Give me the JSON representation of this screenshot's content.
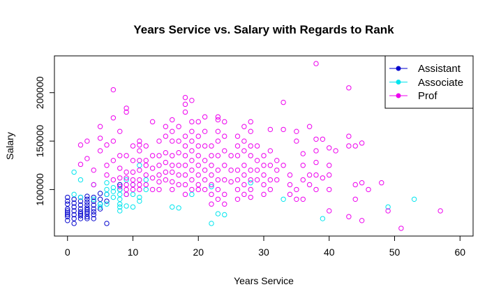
{
  "chart_data": {
    "type": "scatter",
    "title": "Years Service vs. Salary with Regards to Rank",
    "xlabel": "Years Service",
    "ylabel": "Salary",
    "xlim": [
      -2,
      62
    ],
    "ylim": [
      52000,
      238000
    ],
    "x_ticks": [
      0,
      10,
      20,
      30,
      40,
      50,
      60
    ],
    "x_tick_labels": [
      "0",
      "10",
      "20",
      "30",
      "40",
      "50",
      "60"
    ],
    "y_ticks": [
      100000,
      150000,
      200000
    ],
    "y_tick_labels": [
      "100000",
      "150000",
      "200000"
    ],
    "grid": false,
    "legend_position": "top-right",
    "series": [
      {
        "name": "Assistant",
        "color": "#0000CD",
        "points": [
          [
            0,
            92000
          ],
          [
            0,
            88000
          ],
          [
            0,
            85000
          ],
          [
            0,
            80000
          ],
          [
            0,
            78000
          ],
          [
            0,
            76000
          ],
          [
            0,
            74000
          ],
          [
            0,
            72000
          ],
          [
            0,
            68000
          ],
          [
            1,
            90000
          ],
          [
            1,
            86000
          ],
          [
            1,
            82000
          ],
          [
            1,
            78000
          ],
          [
            1,
            74000
          ],
          [
            1,
            70000
          ],
          [
            1,
            65000
          ],
          [
            2,
            92000
          ],
          [
            2,
            88000
          ],
          [
            2,
            84000
          ],
          [
            2,
            80000
          ],
          [
            2,
            77000
          ],
          [
            2,
            75000
          ],
          [
            2,
            73000
          ],
          [
            2,
            70000
          ],
          [
            3,
            93000
          ],
          [
            3,
            90000
          ],
          [
            3,
            87000
          ],
          [
            3,
            84000
          ],
          [
            3,
            81000
          ],
          [
            3,
            79000
          ],
          [
            3,
            77000
          ],
          [
            3,
            75000
          ],
          [
            3,
            72000
          ],
          [
            3,
            70000
          ],
          [
            4,
            92000
          ],
          [
            4,
            88000
          ],
          [
            4,
            84000
          ],
          [
            4,
            80000
          ],
          [
            4,
            77000
          ],
          [
            4,
            74000
          ],
          [
            4,
            70000
          ],
          [
            5,
            96000
          ],
          [
            5,
            90000
          ],
          [
            5,
            85000
          ],
          [
            5,
            80000
          ],
          [
            6,
            95000
          ],
          [
            6,
            88000
          ],
          [
            6,
            65000
          ],
          [
            8,
            105000
          ],
          [
            8,
            100000
          ]
        ]
      },
      {
        "name": "Associate",
        "color": "#00E5EE",
        "points": [
          [
            1,
            118000
          ],
          [
            1,
            95000
          ],
          [
            2,
            110000
          ],
          [
            2,
            92000
          ],
          [
            4,
            105000
          ],
          [
            4,
            90000
          ],
          [
            5,
            85000
          ],
          [
            5,
            82000
          ],
          [
            6,
            107000
          ],
          [
            6,
            100000
          ],
          [
            6,
            95000
          ],
          [
            6,
            85000
          ],
          [
            7,
            102000
          ],
          [
            7,
            98000
          ],
          [
            7,
            92000
          ],
          [
            8,
            100000
          ],
          [
            8,
            95000
          ],
          [
            8,
            90000
          ],
          [
            8,
            85000
          ],
          [
            8,
            82000
          ],
          [
            8,
            78000
          ],
          [
            9,
            110000
          ],
          [
            9,
            95000
          ],
          [
            9,
            83000
          ],
          [
            10,
            105000
          ],
          [
            10,
            95000
          ],
          [
            10,
            82000
          ],
          [
            11,
            125000
          ],
          [
            11,
            92000
          ],
          [
            11,
            88000
          ],
          [
            12,
            110000
          ],
          [
            12,
            100000
          ],
          [
            16,
            82000
          ],
          [
            17,
            81000
          ],
          [
            19,
            95000
          ],
          [
            22,
            65000
          ],
          [
            22,
            103000
          ],
          [
            23,
            75000
          ],
          [
            24,
            74000
          ],
          [
            28,
            107000
          ],
          [
            33,
            90000
          ],
          [
            39,
            70000
          ],
          [
            49,
            82000
          ],
          [
            53,
            90000
          ]
        ]
      },
      {
        "name": "Prof",
        "color": "#EE00EE",
        "points": [
          [
            2,
            146000
          ],
          [
            2,
            126000
          ],
          [
            3,
            150000
          ],
          [
            3,
            132000
          ],
          [
            4,
            120000
          ],
          [
            4,
            105000
          ],
          [
            5,
            165000
          ],
          [
            5,
            153000
          ],
          [
            5,
            140000
          ],
          [
            6,
            146000
          ],
          [
            6,
            125000
          ],
          [
            6,
            115000
          ],
          [
            7,
            203000
          ],
          [
            7,
            174000
          ],
          [
            7,
            150000
          ],
          [
            7,
            130000
          ],
          [
            7,
            110000
          ],
          [
            8,
            160000
          ],
          [
            8,
            135000
          ],
          [
            8,
            122000
          ],
          [
            8,
            112000
          ],
          [
            8,
            103000
          ],
          [
            9,
            184000
          ],
          [
            9,
            180000
          ],
          [
            9,
            135000
          ],
          [
            9,
            118000
          ],
          [
            9,
            112000
          ],
          [
            9,
            105000
          ],
          [
            9,
            100000
          ],
          [
            9,
            95000
          ],
          [
            10,
            145000
          ],
          [
            10,
            130000
          ],
          [
            10,
            118000
          ],
          [
            10,
            110000
          ],
          [
            10,
            105000
          ],
          [
            10,
            100000
          ],
          [
            11,
            150000
          ],
          [
            11,
            146000
          ],
          [
            11,
            140000
          ],
          [
            11,
            130000
          ],
          [
            11,
            120000
          ],
          [
            11,
            110000
          ],
          [
            11,
            105000
          ],
          [
            11,
            100000
          ],
          [
            12,
            145000
          ],
          [
            12,
            130000
          ],
          [
            12,
            125000
          ],
          [
            12,
            115000
          ],
          [
            12,
            105000
          ],
          [
            13,
            170000
          ],
          [
            13,
            135000
          ],
          [
            13,
            122000
          ],
          [
            13,
            112000
          ],
          [
            13,
            100000
          ],
          [
            14,
            150000
          ],
          [
            14,
            135000
          ],
          [
            14,
            125000
          ],
          [
            14,
            115000
          ],
          [
            14,
            108000
          ],
          [
            14,
            100000
          ],
          [
            15,
            165000
          ],
          [
            15,
            155000
          ],
          [
            15,
            138000
          ],
          [
            15,
            128000
          ],
          [
            15,
            118000
          ],
          [
            15,
            110000
          ],
          [
            16,
            172000
          ],
          [
            16,
            160000
          ],
          [
            16,
            150000
          ],
          [
            16,
            135000
          ],
          [
            16,
            125000
          ],
          [
            16,
            118000
          ],
          [
            16,
            108000
          ],
          [
            16,
            100000
          ],
          [
            17,
            165000
          ],
          [
            17,
            150000
          ],
          [
            17,
            138000
          ],
          [
            17,
            125000
          ],
          [
            17,
            115000
          ],
          [
            17,
            105000
          ],
          [
            18,
            195000
          ],
          [
            18,
            188000
          ],
          [
            18,
            180000
          ],
          [
            18,
            155000
          ],
          [
            18,
            145000
          ],
          [
            18,
            135000
          ],
          [
            18,
            125000
          ],
          [
            18,
            115000
          ],
          [
            18,
            105000
          ],
          [
            18,
            95000
          ],
          [
            19,
            192000
          ],
          [
            19,
            170000
          ],
          [
            19,
            160000
          ],
          [
            19,
            150000
          ],
          [
            19,
            140000
          ],
          [
            19,
            130000
          ],
          [
            19,
            120000
          ],
          [
            19,
            110000
          ],
          [
            19,
            100000
          ],
          [
            20,
            170000
          ],
          [
            20,
            155000
          ],
          [
            20,
            145000
          ],
          [
            20,
            135000
          ],
          [
            20,
            125000
          ],
          [
            20,
            115000
          ],
          [
            20,
            105000
          ],
          [
            20,
            100000
          ],
          [
            21,
            175000
          ],
          [
            21,
            160000
          ],
          [
            21,
            145000
          ],
          [
            21,
            130000
          ],
          [
            21,
            120000
          ],
          [
            21,
            110000
          ],
          [
            21,
            100000
          ],
          [
            22,
            145000
          ],
          [
            22,
            135000
          ],
          [
            22,
            125000
          ],
          [
            22,
            115000
          ],
          [
            22,
            105000
          ],
          [
            22,
            95000
          ],
          [
            22,
            85000
          ],
          [
            23,
            175000
          ],
          [
            23,
            172000
          ],
          [
            23,
            160000
          ],
          [
            23,
            150000
          ],
          [
            23,
            135000
          ],
          [
            23,
            120000
          ],
          [
            23,
            110000
          ],
          [
            23,
            100000
          ],
          [
            23,
            90000
          ],
          [
            24,
            170000
          ],
          [
            24,
            155000
          ],
          [
            24,
            140000
          ],
          [
            24,
            125000
          ],
          [
            24,
            110000
          ],
          [
            24,
            95000
          ],
          [
            24,
            85000
          ],
          [
            25,
            135000
          ],
          [
            25,
            120000
          ],
          [
            25,
            108000
          ],
          [
            26,
            155000
          ],
          [
            26,
            145000
          ],
          [
            26,
            135000
          ],
          [
            26,
            120000
          ],
          [
            26,
            110000
          ],
          [
            26,
            100000
          ],
          [
            26,
            90000
          ],
          [
            27,
            165000
          ],
          [
            27,
            150000
          ],
          [
            27,
            140000
          ],
          [
            27,
            125000
          ],
          [
            27,
            115000
          ],
          [
            27,
            105000
          ],
          [
            27,
            95000
          ],
          [
            28,
            170000
          ],
          [
            28,
            160000
          ],
          [
            28,
            145000
          ],
          [
            28,
            135000
          ],
          [
            28,
            120000
          ],
          [
            28,
            110000
          ],
          [
            28,
            100000
          ],
          [
            28,
            92000
          ],
          [
            29,
            145000
          ],
          [
            29,
            130000
          ],
          [
            29,
            120000
          ],
          [
            29,
            110000
          ],
          [
            30,
            135000
          ],
          [
            30,
            125000
          ],
          [
            30,
            115000
          ],
          [
            30,
            105000
          ],
          [
            30,
            95000
          ],
          [
            31,
            162000
          ],
          [
            31,
            140000
          ],
          [
            31,
            125000
          ],
          [
            31,
            110000
          ],
          [
            31,
            100000
          ],
          [
            32,
            130000
          ],
          [
            32,
            120000
          ],
          [
            32,
            110000
          ],
          [
            33,
            190000
          ],
          [
            33,
            162000
          ],
          [
            33,
            125000
          ],
          [
            34,
            115000
          ],
          [
            34,
            105000
          ],
          [
            34,
            95000
          ],
          [
            35,
            160000
          ],
          [
            35,
            150000
          ],
          [
            35,
            100000
          ],
          [
            35,
            90000
          ],
          [
            36,
            137000
          ],
          [
            36,
            125000
          ],
          [
            36,
            110000
          ],
          [
            36,
            90000
          ],
          [
            37,
            165000
          ],
          [
            37,
            115000
          ],
          [
            37,
            105000
          ],
          [
            38,
            230000
          ],
          [
            38,
            152000
          ],
          [
            38,
            140000
          ],
          [
            38,
            128000
          ],
          [
            38,
            115000
          ],
          [
            38,
            100000
          ],
          [
            39,
            152000
          ],
          [
            39,
            112000
          ],
          [
            40,
            143000
          ],
          [
            40,
            125000
          ],
          [
            40,
            115000
          ],
          [
            40,
            100000
          ],
          [
            40,
            78000
          ],
          [
            41,
            140000
          ],
          [
            43,
            205000
          ],
          [
            43,
            155000
          ],
          [
            43,
            145000
          ],
          [
            43,
            72000
          ],
          [
            44,
            145000
          ],
          [
            44,
            105000
          ],
          [
            44,
            90000
          ],
          [
            45,
            148000
          ],
          [
            45,
            107000
          ],
          [
            45,
            68000
          ],
          [
            46,
            100000
          ],
          [
            48,
            107000
          ],
          [
            49,
            188000
          ],
          [
            49,
            78000
          ],
          [
            51,
            60000
          ],
          [
            57,
            78000
          ]
        ]
      }
    ]
  }
}
